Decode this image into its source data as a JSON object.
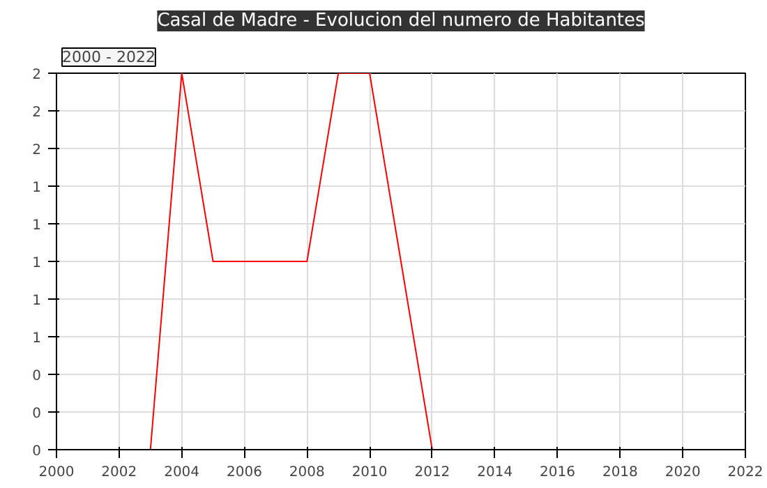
{
  "chart_data": {
    "type": "line",
    "title": "Casal de Madre - Evolucion del numero de Habitantes",
    "annotations": [
      "2000 - 2022"
    ],
    "x": [
      2003,
      2004,
      2005,
      2006,
      2007,
      2008,
      2009,
      2010,
      2011,
      2012
    ],
    "series": [
      {
        "color": "#ff0000",
        "values": [
          0,
          2,
          1,
          1,
          1,
          1,
          2,
          2,
          1,
          0
        ]
      }
    ],
    "xlim": [
      2000,
      2022
    ],
    "xticks": [
      2000,
      2002,
      2004,
      2006,
      2008,
      2010,
      2012,
      2014,
      2016,
      2018,
      2020,
      2022
    ],
    "ylim": [
      0,
      2
    ],
    "yticks": [
      0,
      {
        "value": 0.2,
        "label": "0"
      },
      {
        "value": 0.4,
        "label": "0"
      },
      {
        "value": 0.6,
        "label": "1"
      },
      {
        "value": 0.8,
        "label": "1"
      },
      {
        "value": 1,
        "label": "1"
      },
      {
        "value": 1.2,
        "label": "1"
      },
      {
        "value": 1.4,
        "label": "1"
      },
      {
        "value": 1.6,
        "label": "2"
      },
      {
        "value": 1.8,
        "label": "2"
      },
      {
        "value": 2,
        "label": "2"
      }
    ],
    "grid": true
  }
}
